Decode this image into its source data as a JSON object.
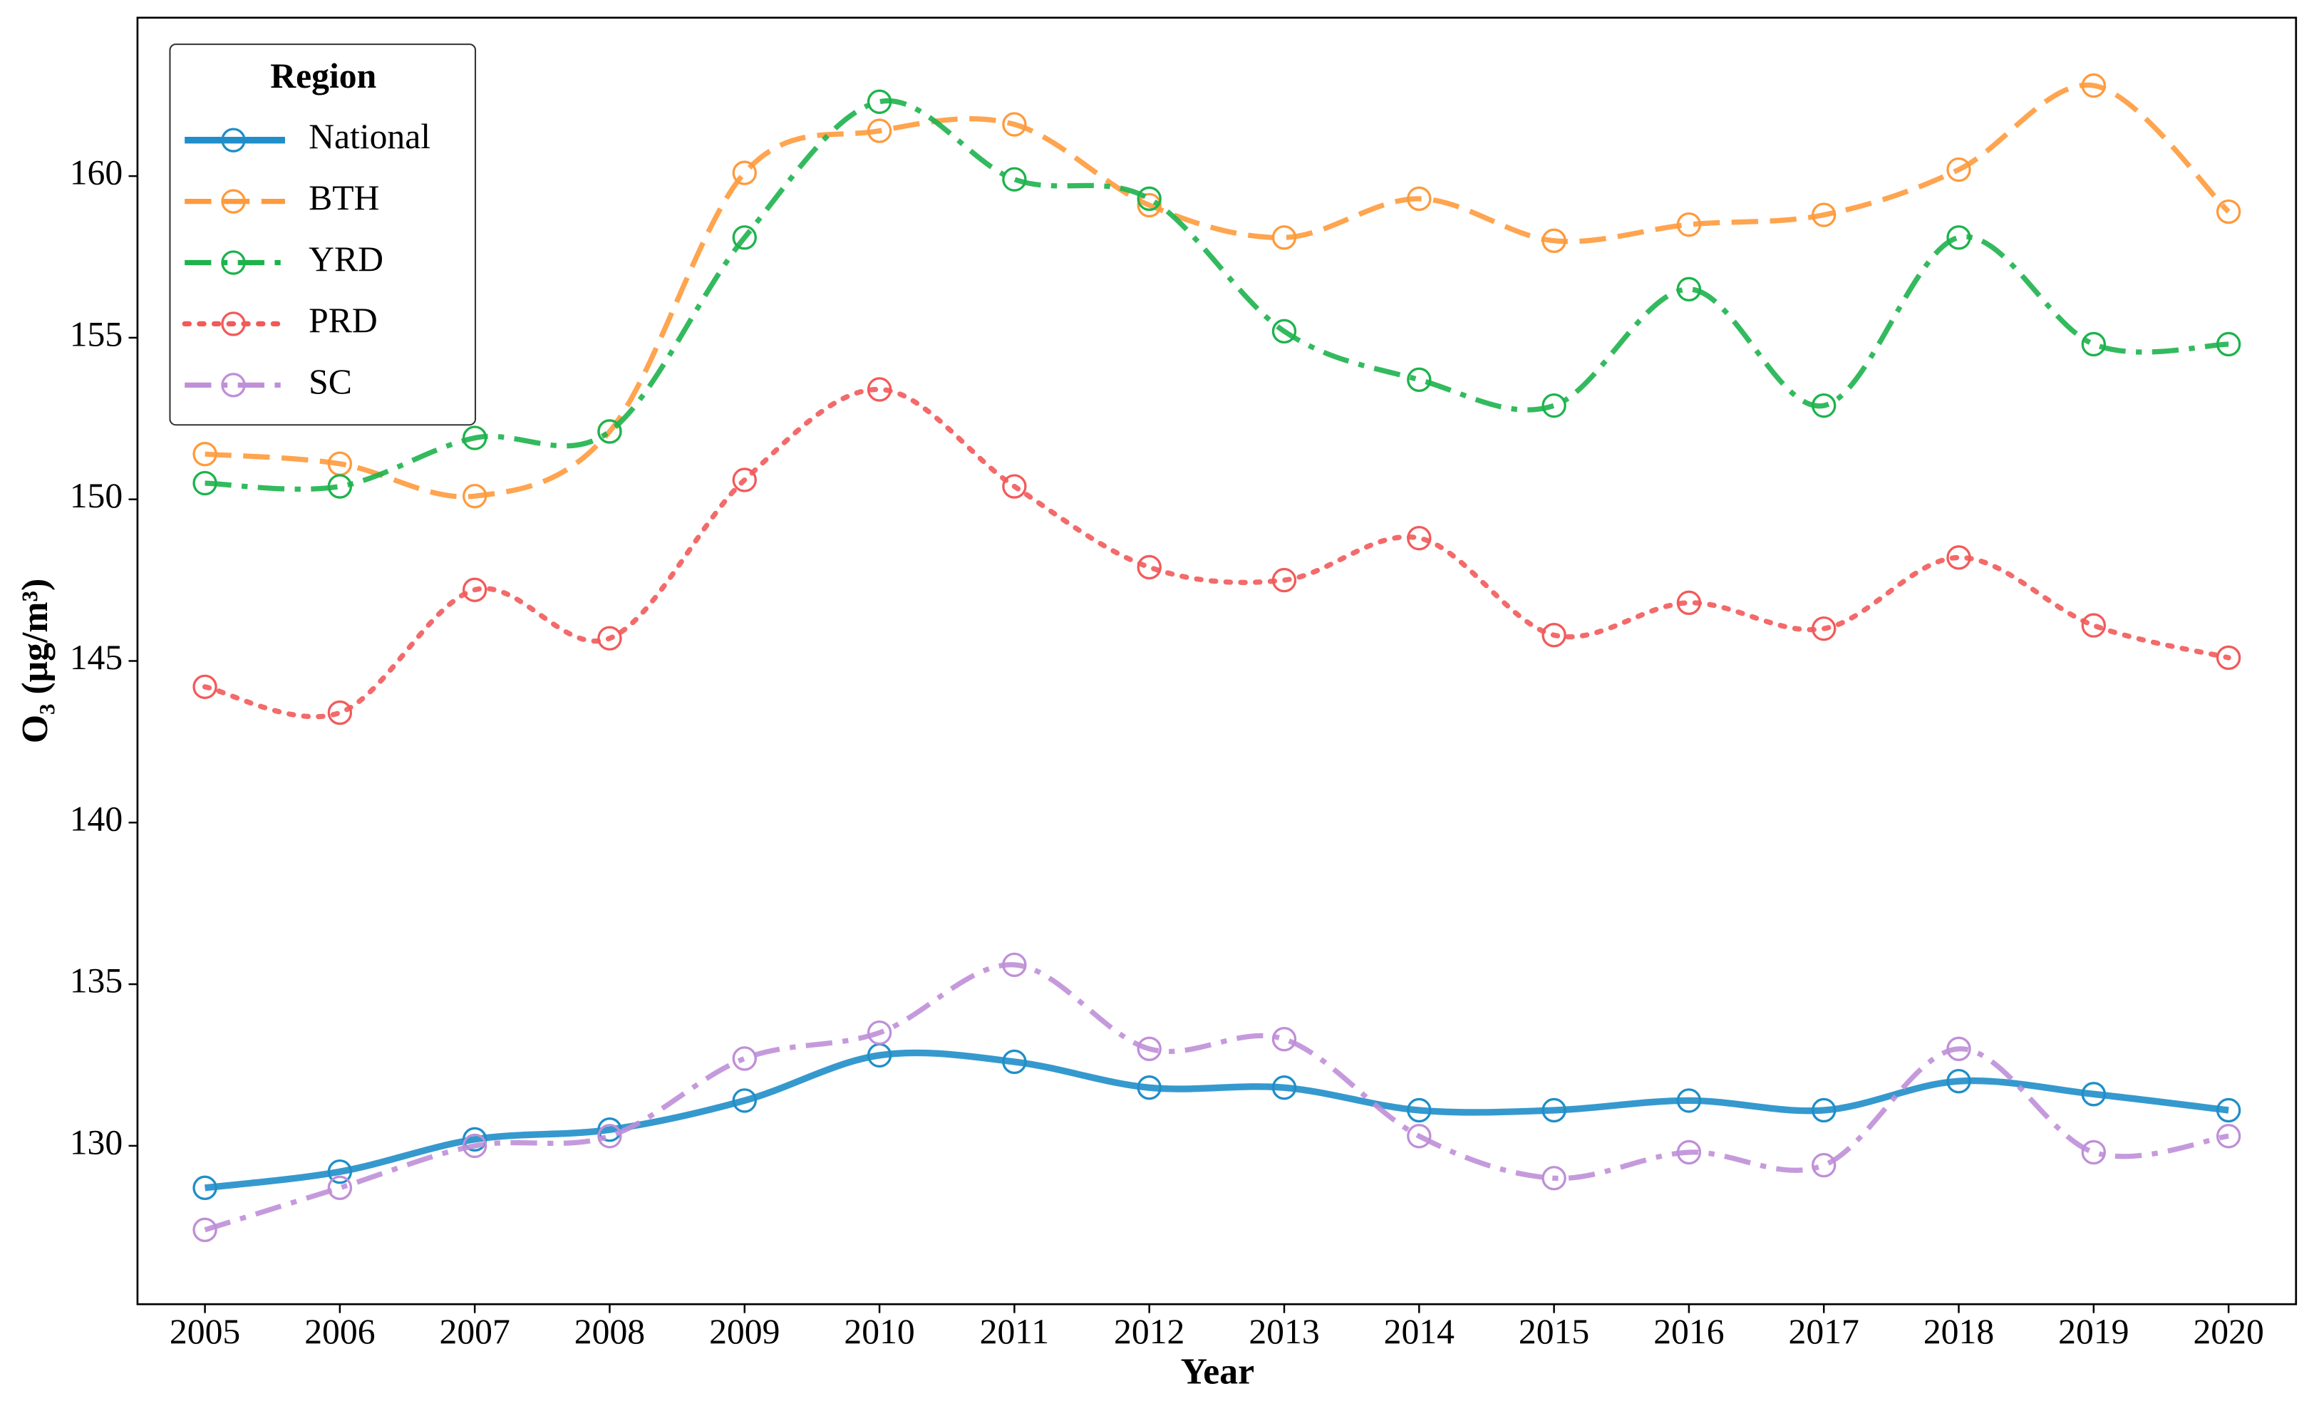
{
  "chart_data": {
    "type": "line",
    "xlabel": "Year",
    "ylabel": "O₃ (μg/m³)",
    "legend_title": "Region",
    "legend": "upper left",
    "x": [
      2005,
      2006,
      2007,
      2008,
      2009,
      2010,
      2011,
      2012,
      2013,
      2014,
      2015,
      2016,
      2017,
      2018,
      2019,
      2020
    ],
    "xlim": [
      2004.5,
      2020.5
    ],
    "xticks": [
      2005,
      2006,
      2007,
      2008,
      2009,
      2010,
      2011,
      2012,
      2013,
      2014,
      2015,
      2016,
      2017,
      2018,
      2019,
      2020
    ],
    "ylim": [
      125.1,
      164.9
    ],
    "yticks": [
      130,
      135,
      140,
      145,
      150,
      155,
      160
    ],
    "series": [
      {
        "name": "National",
        "color": "#1f8ec9",
        "linestyle": "solid",
        "values": [
          128.7,
          129.2,
          130.2,
          130.5,
          131.4,
          132.8,
          132.6,
          131.8,
          131.8,
          131.1,
          131.1,
          131.4,
          131.1,
          132.0,
          131.6,
          131.1
        ]
      },
      {
        "name": "BTH",
        "color": "#ff9a3c",
        "linestyle": "dashed",
        "values": [
          151.4,
          151.1,
          150.1,
          152.1,
          160.1,
          161.4,
          161.6,
          159.1,
          158.1,
          159.3,
          158.0,
          158.5,
          158.8,
          160.2,
          162.8,
          158.9
        ]
      },
      {
        "name": "YRD",
        "color": "#1db34c",
        "linestyle": "dashdot",
        "values": [
          150.5,
          150.4,
          151.9,
          152.1,
          158.1,
          162.3,
          159.9,
          159.3,
          155.2,
          153.7,
          152.9,
          156.5,
          152.9,
          158.1,
          154.8,
          154.8
        ]
      },
      {
        "name": "PRD",
        "color": "#f25a5a",
        "linestyle": "dotted",
        "values": [
          144.2,
          143.4,
          147.2,
          145.7,
          150.6,
          153.4,
          150.4,
          147.9,
          147.5,
          148.8,
          145.8,
          146.8,
          146.0,
          148.2,
          146.1,
          145.1
        ]
      },
      {
        "name": "SC",
        "color": "#bf8fd8",
        "linestyle": "dashdot",
        "values": [
          127.4,
          128.7,
          130.0,
          130.3,
          132.7,
          133.5,
          135.6,
          133.0,
          133.3,
          130.3,
          129.0,
          129.8,
          129.4,
          133.0,
          129.8,
          130.3
        ]
      }
    ]
  }
}
